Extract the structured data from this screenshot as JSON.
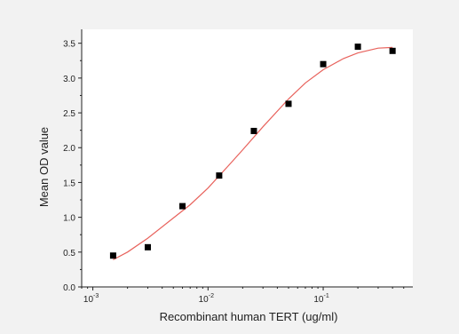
{
  "chart_data": {
    "type": "scatter",
    "title": "",
    "xlabel": "Recombinant human TERT (ug/ml)",
    "ylabel": "Mean OD value",
    "x_scale": "log",
    "xlim": [
      0.0008,
      0.6
    ],
    "ylim": [
      0.0,
      3.7
    ],
    "x_ticks": [
      {
        "value": 0.001,
        "base": "10",
        "exp": "-3"
      },
      {
        "value": 0.01,
        "base": "10",
        "exp": "-2"
      },
      {
        "value": 0.1,
        "base": "10",
        "exp": "-1"
      }
    ],
    "y_ticks": [
      "0.0",
      "0.5",
      "1.0",
      "1.5",
      "2.0",
      "2.5",
      "3.0",
      "3.5"
    ],
    "grid": false,
    "legend": "none",
    "series": [
      {
        "marker": "square",
        "color": "#000000",
        "points": [
          {
            "x": 0.0015,
            "y": 0.45
          },
          {
            "x": 0.003,
            "y": 0.57
          },
          {
            "x": 0.006,
            "y": 1.16
          },
          {
            "x": 0.0125,
            "y": 1.6
          },
          {
            "x": 0.025,
            "y": 2.24
          },
          {
            "x": 0.05,
            "y": 2.63
          },
          {
            "x": 0.1,
            "y": 3.2
          },
          {
            "x": 0.2,
            "y": 3.45
          },
          {
            "x": 0.4,
            "y": 3.39
          }
        ]
      }
    ],
    "fit_curve": {
      "color": "#e8625c",
      "points": [
        {
          "x": 0.0015,
          "y": 0.39
        },
        {
          "x": 0.002,
          "y": 0.5
        },
        {
          "x": 0.003,
          "y": 0.7
        },
        {
          "x": 0.005,
          "y": 0.99
        },
        {
          "x": 0.007,
          "y": 1.18
        },
        {
          "x": 0.01,
          "y": 1.42
        },
        {
          "x": 0.015,
          "y": 1.74
        },
        {
          "x": 0.02,
          "y": 1.97
        },
        {
          "x": 0.03,
          "y": 2.3
        },
        {
          "x": 0.05,
          "y": 2.7
        },
        {
          "x": 0.07,
          "y": 2.93
        },
        {
          "x": 0.1,
          "y": 3.12
        },
        {
          "x": 0.15,
          "y": 3.28
        },
        {
          "x": 0.2,
          "y": 3.36
        },
        {
          "x": 0.3,
          "y": 3.43
        },
        {
          "x": 0.4,
          "y": 3.44
        }
      ]
    }
  }
}
